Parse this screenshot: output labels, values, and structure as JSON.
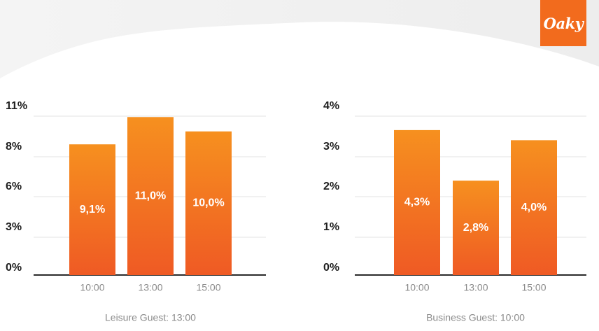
{
  "brand": {
    "logo_text": "Oaky",
    "color": "#f26b1d"
  },
  "colors": {
    "bar_top": "#f6901f",
    "bar_bottom": "#ef5a24",
    "axis": "#2b2b2b",
    "grid": "#e3e3e3"
  },
  "chart_data": [
    {
      "type": "bar",
      "title": "Leisure Guest: 13:00",
      "xlabel": "",
      "ylabel": "",
      "categories": [
        "10:00",
        "13:00",
        "15:00"
      ],
      "values": [
        9.1,
        11.0,
        10.0
      ],
      "data_labels": [
        "9,1%",
        "11,0%",
        "10,0%"
      ],
      "y_ticks": [
        "0%",
        "3%",
        "6%",
        "8%",
        "11%"
      ],
      "ylim": [
        0,
        11.5
      ],
      "grid": true,
      "legend": "none"
    },
    {
      "type": "bar",
      "title": "Business Guest: 10:00",
      "xlabel": "",
      "ylabel": "",
      "categories": [
        "10:00",
        "13:00",
        "15:00"
      ],
      "values": [
        4.3,
        2.8,
        4.0
      ],
      "data_labels": [
        "4,3%",
        "2,8%",
        "4,0%"
      ],
      "y_ticks": [
        "0%",
        "1%",
        "2%",
        "3%",
        "4%"
      ],
      "ylim": [
        0,
        4.9
      ],
      "grid": true,
      "legend": "none"
    }
  ]
}
